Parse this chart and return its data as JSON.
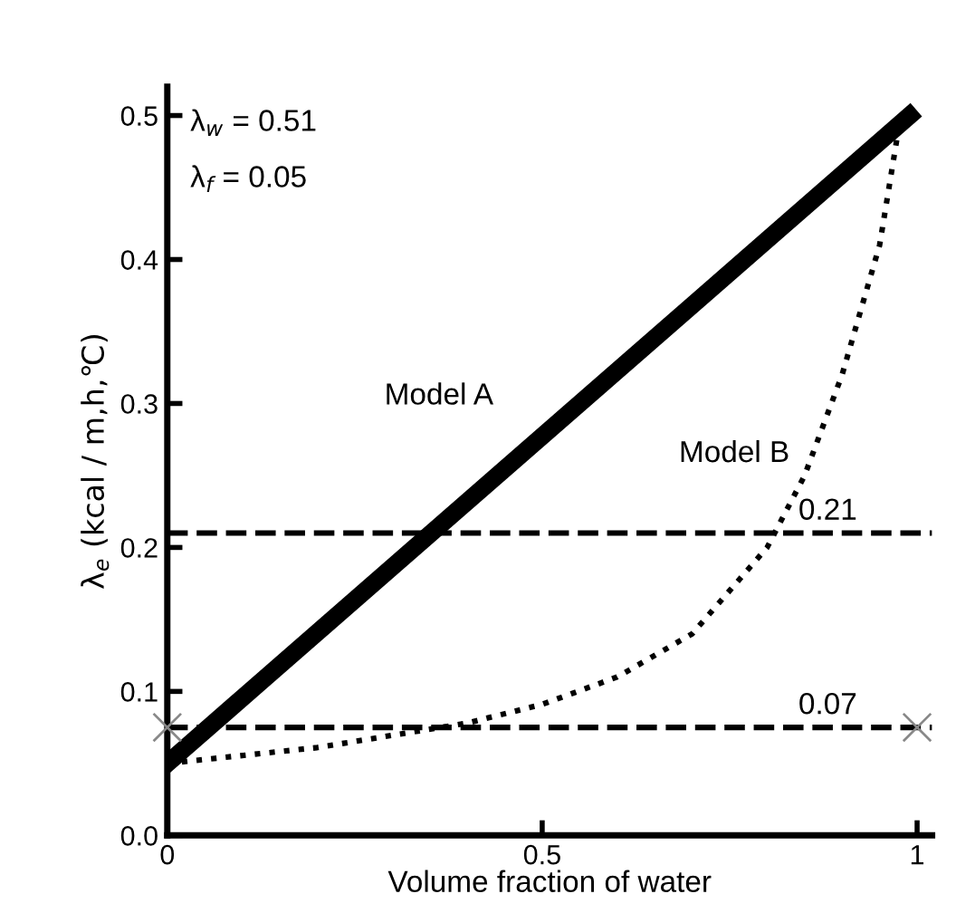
{
  "chart_data": {
    "type": "line",
    "xlabel": "Volume fraction of water",
    "ylabel": "λ$_{e}$ (kcal / m,h,℃)",
    "xlim": [
      0,
      1.02
    ],
    "ylim": [
      0,
      0.52
    ],
    "xticks": [
      {
        "value": 0,
        "label": "0"
      },
      0.5,
      {
        "value": 1,
        "label": "1"
      }
    ],
    "yticks": [
      {
        "value": 0,
        "label": "0.0"
      },
      0.1,
      0.2,
      0.3,
      0.4,
      0.5
    ],
    "grid": false,
    "legend": false,
    "series": [
      {
        "name": "Model A",
        "color": "#000000",
        "line_style": "solid",
        "x": [
          0,
          0.99
        ],
        "values": [
          0.05,
          0.5
        ]
      },
      {
        "name": "Model B",
        "color": "#000000",
        "line_style": "dotted",
        "x": [
          0,
          0.2,
          0.4,
          0.5,
          0.6,
          0.7,
          0.8,
          0.85,
          0.9,
          0.95,
          0.975
        ],
        "values": [
          0.05,
          0.061,
          0.078,
          0.091,
          0.11,
          0.14,
          0.2,
          0.25,
          0.32,
          0.41,
          0.49
        ]
      },
      {
        "type": "scatter",
        "color": "#888888",
        "marker": "cross",
        "x": [
          0,
          1
        ],
        "values": [
          0.075,
          0.075
        ]
      }
    ],
    "ref_lines": [
      {
        "axis": "y",
        "value": 0.21,
        "label": "0.21",
        "color": "#000000",
        "line_style": "dashed"
      },
      {
        "axis": "y",
        "value": 0.075,
        "label": "0.07",
        "color": "#000000",
        "line_style": "dashed"
      }
    ],
    "annotations": [
      "λ$_{w}$ = 0.51",
      "λ$_{f}$ = 0.05"
    ]
  }
}
